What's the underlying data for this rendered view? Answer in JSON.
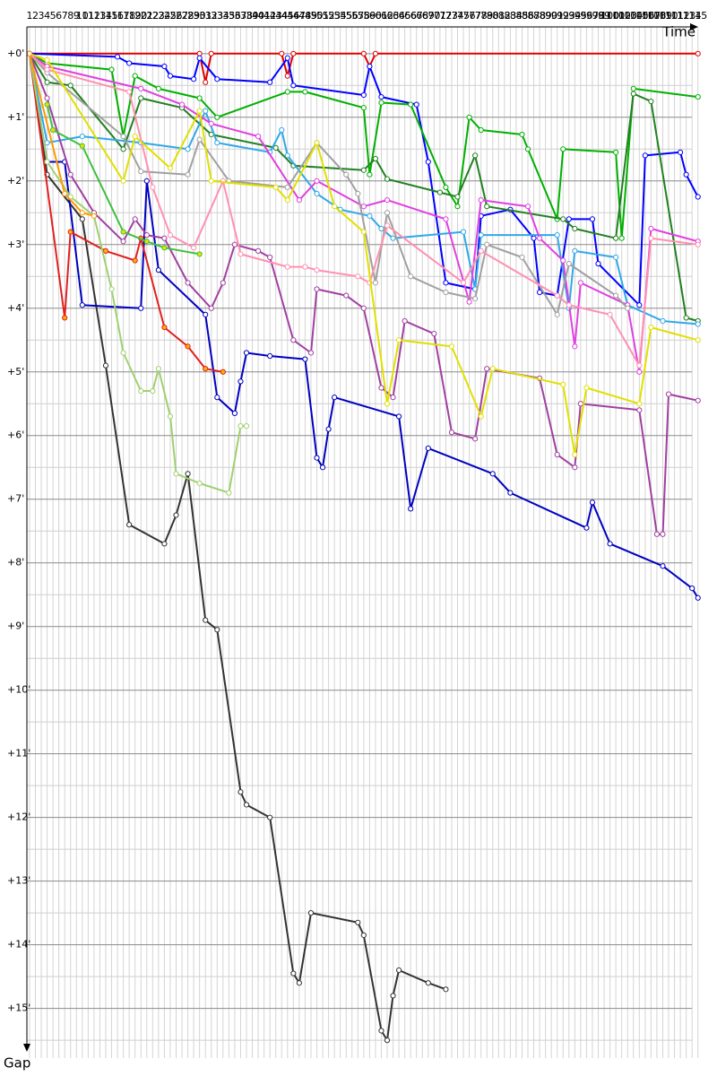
{
  "chart_data": {
    "type": "line",
    "x_label": "Time",
    "y_label": "Gap",
    "xlim": [
      0.55,
      115.5
    ],
    "ylim": [
      -0.42,
      15.78
    ],
    "y_inverted": true,
    "grid": true,
    "xticks": [
      1,
      2,
      3,
      4,
      5,
      6,
      7,
      8,
      9,
      10,
      11,
      12,
      13,
      14,
      15,
      16,
      17,
      18,
      19,
      20,
      21,
      22,
      23,
      24,
      25,
      26,
      27,
      28,
      29,
      30,
      31,
      32,
      33,
      34,
      35,
      36,
      37,
      38,
      39,
      40,
      41,
      42,
      43,
      44,
      45,
      46,
      47,
      48,
      49,
      50,
      51,
      52,
      53,
      54,
      55,
      56,
      57,
      58,
      59,
      60,
      61,
      62,
      63,
      64,
      65,
      66,
      67,
      68,
      69,
      70,
      71,
      72,
      73,
      74,
      75,
      76,
      77,
      78,
      79,
      80,
      81,
      82,
      83,
      84,
      85,
      86,
      87,
      88,
      89,
      90,
      91,
      92,
      93,
      94,
      95,
      96,
      97,
      98,
      99,
      100,
      101,
      102,
      103,
      104,
      105,
      106,
      107,
      108,
      109,
      110,
      111,
      112,
      113,
      114,
      115
    ],
    "yticks": [
      {
        "value": 0,
        "label": "+0'"
      },
      {
        "value": 1,
        "label": "+1'"
      },
      {
        "value": 2,
        "label": "+2'"
      },
      {
        "value": 3,
        "label": "+3'"
      },
      {
        "value": 4,
        "label": "+4'"
      },
      {
        "value": 5,
        "label": "+5'"
      },
      {
        "value": 6,
        "label": "+6'"
      },
      {
        "value": 7,
        "label": "+7'"
      },
      {
        "value": 8,
        "label": "+8'"
      },
      {
        "value": 9,
        "label": "+9'"
      },
      {
        "value": 10,
        "label": "+10'"
      },
      {
        "value": 11,
        "label": "+11'"
      },
      {
        "value": 12,
        "label": "+12'"
      },
      {
        "value": 13,
        "label": "+13'"
      },
      {
        "value": 14,
        "label": "+14'"
      },
      {
        "value": 15,
        "label": "+15'"
      }
    ],
    "yminorticks": [
      0.5,
      1.5,
      2.5,
      3.5,
      4.5,
      5.5,
      6.5,
      7.5,
      8.5,
      9.5,
      10.5,
      11.5,
      12.5,
      13.5,
      14.5,
      15.5
    ],
    "series": [
      {
        "color": "#e00000",
        "marker_fill": "#ffffff",
        "x": [
          1,
          30,
          31,
          32,
          44,
          45,
          46,
          58,
          59,
          60,
          115
        ],
        "values": [
          0,
          0,
          0.45,
          0,
          0,
          0.35,
          0,
          0,
          0.2,
          0,
          0
        ]
      },
      {
        "color": "#333333",
        "marker_fill": "#ffffff",
        "x": [
          1,
          4,
          10,
          14,
          18,
          24,
          26,
          28,
          31,
          33,
          37,
          38,
          42,
          46,
          47,
          49,
          57,
          58,
          61,
          62,
          63,
          64,
          69,
          72
        ],
        "values": [
          0,
          1.9,
          2.6,
          4.9,
          7.4,
          7.7,
          7.25,
          6.6,
          8.9,
          9.05,
          11.6,
          11.8,
          12.0,
          14.45,
          14.6,
          13.5,
          13.65,
          13.85,
          15.35,
          15.5,
          14.8,
          14.4,
          14.6,
          14.7
        ]
      },
      {
        "color": "#0000c0",
        "marker_fill": "#ffffff",
        "x": [
          1,
          4,
          7,
          10,
          20,
          21,
          23,
          31,
          33,
          36,
          37,
          38,
          42,
          48,
          50,
          51,
          52,
          53,
          64,
          66,
          69,
          80,
          83,
          96,
          97,
          100,
          109,
          114,
          115
        ],
        "values": [
          0,
          1.7,
          1.7,
          3.95,
          4.0,
          2.0,
          3.4,
          4.1,
          5.4,
          5.65,
          5.15,
          4.7,
          4.75,
          4.8,
          6.35,
          6.5,
          5.9,
          5.4,
          5.7,
          7.15,
          6.2,
          6.6,
          6.9,
          7.45,
          7.05,
          7.7,
          8.05,
          8.4,
          8.55
        ]
      },
      {
        "color": "#0000ff",
        "marker_fill": "#ffffff",
        "x": [
          1,
          16,
          18,
          24,
          25,
          29,
          30,
          33,
          42,
          45,
          46,
          58,
          59,
          61,
          67,
          69,
          72,
          77,
          78,
          83,
          87,
          88,
          91,
          93,
          97,
          98,
          105,
          106,
          112,
          113,
          115
        ],
        "values": [
          0,
          0.05,
          0.15,
          0.2,
          0.35,
          0.4,
          0.07,
          0.4,
          0.45,
          0.07,
          0.5,
          0.65,
          0.2,
          0.68,
          0.8,
          1.7,
          3.6,
          3.7,
          2.55,
          2.45,
          2.9,
          3.75,
          3.8,
          2.6,
          2.6,
          3.3,
          3.95,
          1.6,
          1.55,
          1.9,
          2.25
        ]
      },
      {
        "color": "#00b000",
        "marker_fill": "#ffffff",
        "x": [
          1,
          4,
          15,
          17,
          19,
          23,
          30,
          33,
          45,
          48,
          58,
          59,
          61,
          66,
          72,
          74,
          76,
          78,
          85,
          86,
          91,
          92,
          101,
          102,
          104,
          115
        ],
        "values": [
          0,
          0.15,
          0.25,
          1.3,
          0.35,
          0.55,
          0.7,
          1.0,
          0.6,
          0.6,
          0.85,
          1.9,
          0.77,
          0.8,
          2.1,
          2.4,
          1.0,
          1.2,
          1.27,
          1.5,
          2.6,
          1.5,
          1.55,
          2.9,
          0.55,
          0.68
        ]
      },
      {
        "color": "#208020",
        "marker_fill": "#ffffff",
        "x": [
          1,
          4,
          8,
          17,
          20,
          27,
          32,
          43,
          46,
          58,
          60,
          62,
          71,
          74,
          77,
          79,
          92,
          94,
          101,
          104,
          107,
          113,
          115
        ],
        "values": [
          0,
          0.45,
          0.5,
          1.5,
          0.7,
          0.85,
          1.27,
          1.48,
          1.76,
          1.83,
          1.65,
          1.97,
          2.18,
          2.25,
          1.6,
          2.4,
          2.6,
          2.75,
          2.9,
          0.63,
          0.75,
          4.15,
          4.2
        ]
      },
      {
        "color": "#30a8e8",
        "marker_fill": "#ffffff",
        "x": [
          1,
          4,
          10,
          20,
          28,
          31,
          33,
          42,
          44,
          45,
          50,
          54,
          59,
          61,
          63,
          75,
          77,
          78,
          91,
          93,
          94,
          101,
          103,
          109,
          115
        ],
        "values": [
          0,
          1.4,
          1.3,
          1.4,
          1.5,
          0.9,
          1.4,
          1.55,
          1.2,
          1.6,
          2.2,
          2.45,
          2.55,
          2.75,
          2.9,
          2.8,
          3.7,
          2.85,
          2.85,
          4.0,
          3.1,
          3.2,
          3.95,
          4.2,
          4.25
        ]
      },
      {
        "color": "#e040e0",
        "marker_fill": "#ffffff",
        "x": [
          1,
          4,
          20,
          27,
          32,
          40,
          47,
          50,
          58,
          62,
          72,
          76,
          78,
          86,
          88,
          92,
          94,
          95,
          103,
          105,
          107,
          115
        ],
        "values": [
          0,
          0.2,
          0.55,
          0.8,
          1.1,
          1.3,
          2.3,
          2.0,
          2.4,
          2.3,
          2.6,
          3.9,
          2.3,
          2.4,
          2.9,
          3.25,
          4.6,
          3.6,
          3.95,
          5.0,
          2.75,
          2.95
        ]
      },
      {
        "color": "#a040a0",
        "marker_fill": "#ffffff",
        "x": [
          1,
          4,
          8,
          12,
          17,
          19,
          21,
          24,
          28,
          32,
          34,
          36,
          40,
          42,
          46,
          49,
          50,
          55,
          58,
          61,
          63,
          65,
          70,
          73,
          77,
          79,
          88,
          91,
          94,
          95,
          105,
          108,
          109,
          110,
          115
        ],
        "values": [
          0,
          0.7,
          1.9,
          2.5,
          2.95,
          2.6,
          2.85,
          2.9,
          3.6,
          4.0,
          3.6,
          3.0,
          3.1,
          3.2,
          4.5,
          4.7,
          3.7,
          3.8,
          4.0,
          5.25,
          5.4,
          4.2,
          4.4,
          5.95,
          6.05,
          4.95,
          5.1,
          6.3,
          6.5,
          5.5,
          5.6,
          7.55,
          7.55,
          5.35,
          5.45
        ]
      },
      {
        "color": "#a0a0a0",
        "marker_fill": "#ffffff",
        "x": [
          1,
          4,
          17,
          20,
          28,
          30,
          35,
          45,
          50,
          55,
          57,
          60,
          62,
          66,
          72,
          77,
          79,
          85,
          91,
          93,
          101,
          103
        ],
        "values": [
          0,
          0.3,
          1.3,
          1.85,
          1.9,
          1.35,
          2.0,
          2.1,
          1.4,
          1.9,
          2.2,
          3.6,
          2.5,
          3.5,
          3.75,
          3.85,
          3.0,
          3.2,
          4.1,
          3.3,
          3.8,
          4.0
        ]
      },
      {
        "color": "#ff90b0",
        "marker_fill": "#ffffff",
        "x": [
          1,
          4,
          18,
          22,
          25,
          29,
          34,
          37,
          45,
          48,
          50,
          57,
          59,
          62,
          75,
          78,
          91,
          93,
          100,
          105,
          107,
          115
        ],
        "values": [
          0,
          0.25,
          0.6,
          2.1,
          2.85,
          3.05,
          2.0,
          3.15,
          3.35,
          3.35,
          3.4,
          3.5,
          3.6,
          2.7,
          3.6,
          3.1,
          3.8,
          3.95,
          4.1,
          4.9,
          2.9,
          3.0
        ]
      },
      {
        "color": "#e0e000",
        "marker_fill": "#ffffff",
        "x": [
          1,
          4,
          17,
          19,
          25,
          30,
          32,
          43,
          45,
          50,
          53,
          58,
          62,
          64,
          73,
          78,
          80,
          92,
          94,
          96,
          105,
          107,
          115
        ],
        "values": [
          0,
          0.1,
          2.0,
          1.3,
          1.8,
          0.9,
          2.0,
          2.1,
          2.3,
          1.4,
          2.4,
          2.8,
          5.5,
          4.5,
          4.6,
          5.7,
          4.95,
          5.2,
          6.3,
          5.25,
          5.5,
          4.3,
          4.5
        ]
      },
      {
        "color": "#e02020",
        "marker_fill": "#ffb000",
        "x": [
          1,
          7,
          8,
          14,
          19,
          20,
          24,
          28,
          31,
          34
        ],
        "values": [
          0,
          4.15,
          2.8,
          3.1,
          3.25,
          2.9,
          4.3,
          4.6,
          4.95,
          5.0
        ]
      },
      {
        "color": "#a0d070",
        "marker_fill": "#ffffff",
        "x": [
          1,
          4,
          8,
          12,
          15,
          17,
          20,
          22,
          23,
          25,
          26,
          30,
          35,
          37,
          38
        ],
        "values": [
          0,
          1.7,
          2.25,
          2.55,
          3.7,
          4.7,
          5.3,
          5.3,
          4.95,
          5.7,
          6.6,
          6.75,
          6.9,
          5.85,
          5.85
        ]
      },
      {
        "color": "#40c040",
        "marker_fill": "#e8e000",
        "x": [
          4,
          5,
          10,
          17,
          21,
          24,
          30
        ],
        "values": [
          0.8,
          1.2,
          1.45,
          2.8,
          2.95,
          3.05,
          3.15
        ]
      },
      {
        "color": "#ff9900",
        "marker_fill": "#ffffff",
        "x": [
          1,
          7,
          10,
          12
        ],
        "values": [
          0,
          2.2,
          2.5,
          2.55
        ]
      }
    ]
  }
}
